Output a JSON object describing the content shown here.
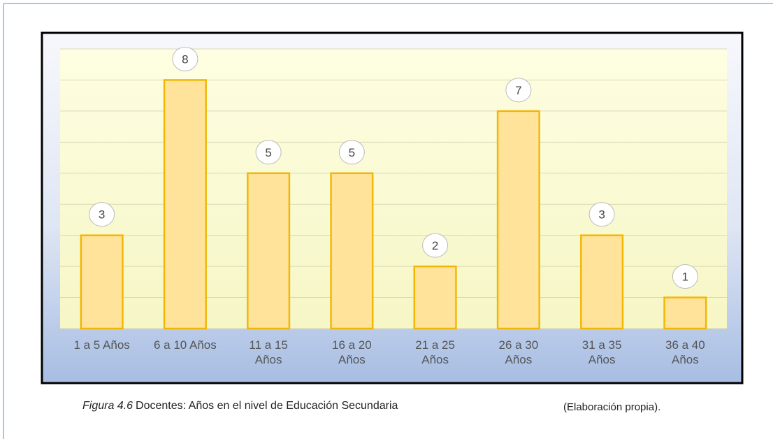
{
  "chart_data": {
    "type": "bar",
    "categories": [
      "1 a 5 Años",
      "6 a 10 Años",
      "11 a 15 Años",
      "16 a 20 Años",
      "21 a 25 Años",
      "26 a 30 Años",
      "31 a 35 Años",
      "36 a 40 Años"
    ],
    "values": [
      3,
      8,
      5,
      5,
      2,
      7,
      3,
      1
    ],
    "color": "#ffe39a",
    "edgecolor": "#f2b705",
    "ylim": [
      0,
      9
    ],
    "yticks": [
      0,
      1,
      2,
      3,
      4,
      5,
      6,
      7,
      8,
      9
    ],
    "grid": true
  },
  "caption": {
    "label": "Figura 4.6",
    "text": "Docentes: Años en el nivel de Educación Secundaria"
  },
  "source": "(Elaboración propia)."
}
